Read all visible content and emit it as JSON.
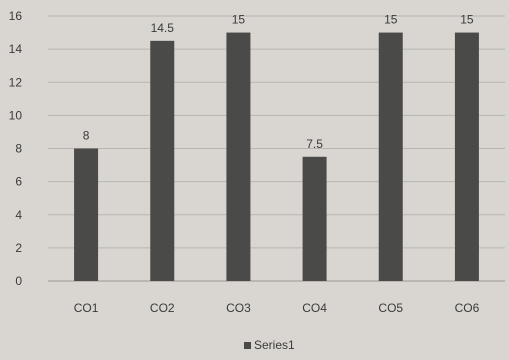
{
  "chart_data": {
    "type": "bar",
    "categories": [
      "CO1",
      "CO2",
      "CO3",
      "CO4",
      "CO5",
      "CO6"
    ],
    "series": [
      {
        "name": "Series1",
        "values": [
          8,
          14.5,
          15,
          7.5,
          15,
          15
        ],
        "color": "#4a4a48"
      }
    ],
    "data_labels": [
      "8",
      "14.5",
      "15",
      "7.5",
      "15",
      "15"
    ],
    "title": "",
    "xlabel": "",
    "ylabel": "",
    "ylim": [
      0,
      16
    ],
    "yticks": [
      0,
      2,
      4,
      6,
      8,
      10,
      12,
      14,
      16
    ],
    "grid": true,
    "legend": {
      "position": "bottom",
      "entries": [
        "Series1"
      ]
    }
  }
}
